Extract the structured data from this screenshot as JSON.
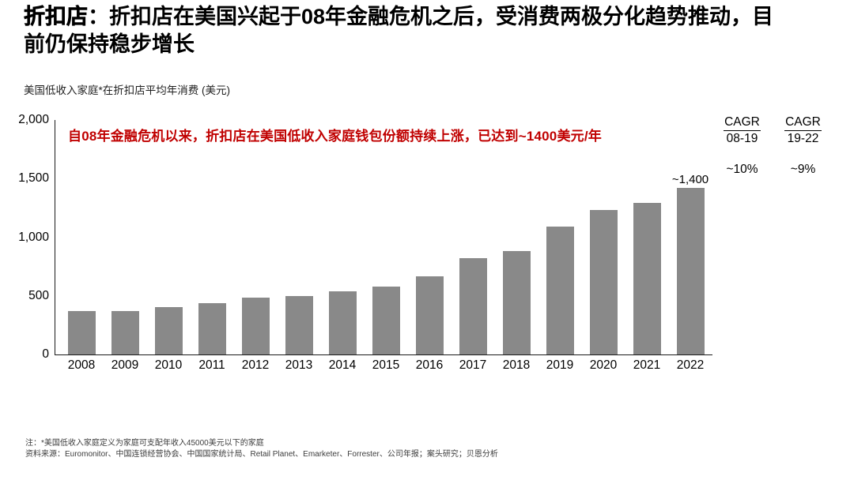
{
  "header": {
    "title_lead": "折扣店",
    "title_rest": "：折扣店在美国兴起于08年金融危机之后，受消费两极分化趋势推动，目前仍保持稳步增长"
  },
  "chart_data": {
    "type": "bar",
    "title": "美国低收入家庭*在折扣店平均年消费 (美元)",
    "annotation": "自08年金融危机以来，折扣店在美国低收入家庭钱包份额持续上涨，已达到~1400美元/年",
    "categories": [
      "2008",
      "2009",
      "2010",
      "2011",
      "2012",
      "2013",
      "2014",
      "2015",
      "2016",
      "2017",
      "2018",
      "2019",
      "2020",
      "2021",
      "2022"
    ],
    "values": [
      370,
      370,
      405,
      440,
      485,
      495,
      540,
      580,
      670,
      820,
      880,
      1090,
      1230,
      1295,
      1420
    ],
    "point_label": {
      "index": 14,
      "text": "~1,400"
    },
    "ylim": [
      0,
      2000
    ],
    "yticks": [
      {
        "value": 0,
        "label": "0"
      },
      {
        "value": 500,
        "label": "500"
      },
      {
        "value": 1000,
        "label": "1,000"
      },
      {
        "value": 1500,
        "label": "1,500"
      },
      {
        "value": 2000,
        "label": "2,000"
      }
    ],
    "xlabel": "",
    "ylabel": "美元",
    "grid": false,
    "legend": false,
    "bar_color": "#898989",
    "annotation_color": "#C00000"
  },
  "cagr": [
    {
      "header": "CAGR",
      "period": "08-19",
      "value": "~10%"
    },
    {
      "header": "CAGR",
      "period": "19-22",
      "value": "~9%"
    }
  ],
  "footnotes": {
    "note": "注：*美国低收入家庭定义为家庭可支配年收入45000美元以下的家庭",
    "source": "资料来源：Euromonitor、中国连锁经营协会、中国国家统计局、Retail Planet、Emarketer、Forrester、公司年报；案头研究；贝恩分析"
  }
}
